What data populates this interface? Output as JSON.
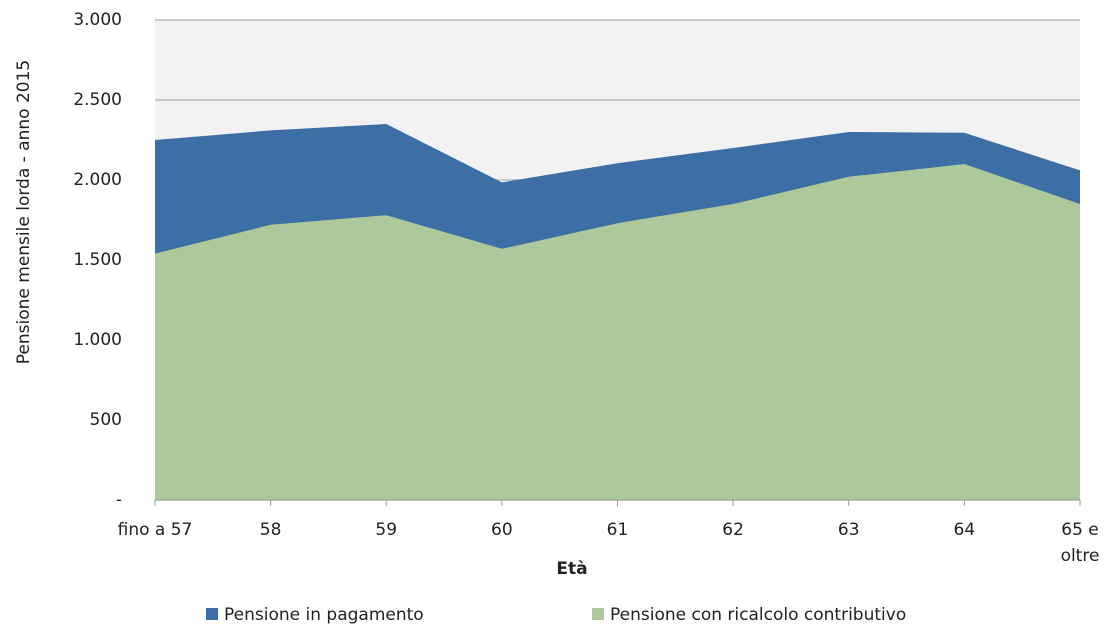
{
  "chart_data": {
    "type": "area",
    "y_label": "Pensione mensile lorda - anno 2015",
    "x_label": "Età",
    "categories": [
      "fino a 57",
      "58",
      "59",
      "60",
      "61",
      "62",
      "63",
      "64",
      "65 e\noltre"
    ],
    "series": [
      {
        "name": "Pensione in pagamento",
        "color": "#3e6ea6",
        "values": [
          2250,
          2310,
          2350,
          1985,
          2105,
          2200,
          2300,
          2295,
          2060
        ]
      },
      {
        "name": "Pensione con ricalcolo contributivo",
        "color": "#adc99b",
        "values": [
          1540,
          1720,
          1780,
          1570,
          1730,
          1850,
          2020,
          2100,
          1850
        ]
      }
    ],
    "ylim": [
      0,
      3000
    ],
    "yticks": [
      {
        "value": 0,
        "label": "-"
      },
      500,
      {
        "value": 1000,
        "label": "1.000"
      },
      {
        "value": 1500,
        "label": "1.500"
      },
      {
        "value": 2000,
        "label": "2.000"
      },
      {
        "value": 2500,
        "label": "2.500"
      },
      {
        "value": 3000,
        "label": "3.000"
      }
    ],
    "grid": true,
    "legend": "bottom"
  }
}
